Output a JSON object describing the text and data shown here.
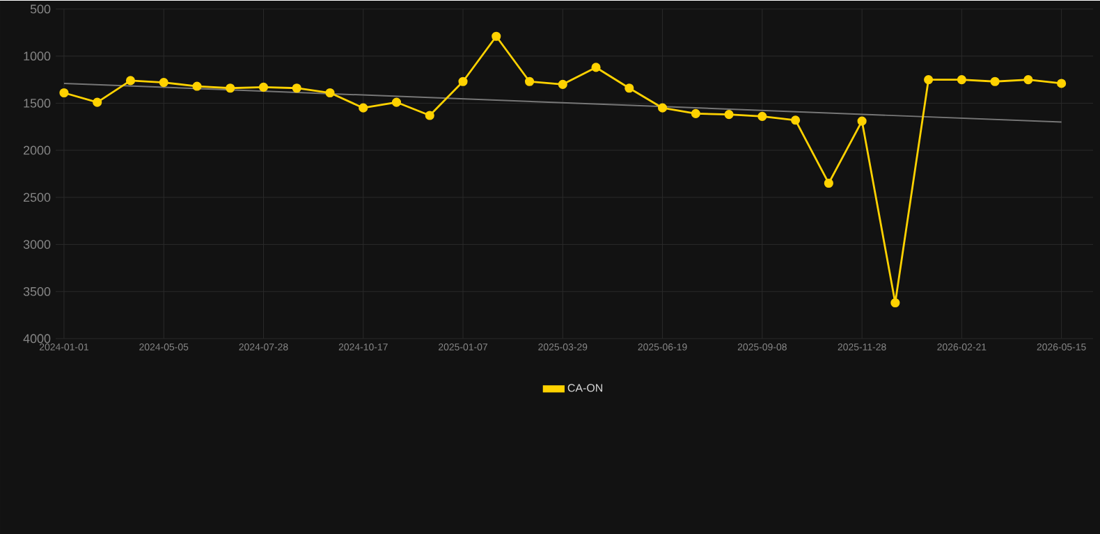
{
  "chart_data": {
    "type": "line",
    "categories": [
      "2024-01-01",
      null,
      null,
      "2024-05-05",
      null,
      null,
      "2024-07-28",
      null,
      null,
      "2024-10-17",
      null,
      null,
      "2025-01-07",
      null,
      null,
      "2025-03-29",
      null,
      null,
      "2025-06-19",
      null,
      null,
      "2025-09-08",
      null,
      null,
      "2025-11-28",
      null,
      null,
      "2026-02-21",
      null,
      null,
      "2026-05-15"
    ],
    "series": [
      {
        "name": "CA-ON",
        "color": "#ffd200",
        "marker": "circle",
        "values": [
          1390,
          1490,
          1260,
          1280,
          1320,
          1340,
          1330,
          1340,
          1390,
          1550,
          1490,
          1630,
          1270,
          790,
          1270,
          1300,
          1120,
          1340,
          1550,
          1610,
          1620,
          1640,
          1680,
          2350,
          1690,
          3620,
          1250,
          1250,
          1270,
          1250,
          1290
        ]
      },
      {
        "type": "line",
        "color": "#777777",
        "marker": "none",
        "values": [
          1290,
          null,
          null,
          null,
          null,
          null,
          null,
          null,
          null,
          null,
          null,
          null,
          null,
          null,
          null,
          null,
          null,
          null,
          null,
          null,
          null,
          null,
          null,
          null,
          null,
          null,
          null,
          null,
          null,
          null,
          1700
        ]
      }
    ],
    "ylim": [
      4000,
      500
    ],
    "yticks": [
      500,
      1000,
      1500,
      2000,
      2500,
      3000,
      3500,
      4000
    ],
    "grid": true,
    "legend": "bottom",
    "line_style": "solid"
  }
}
